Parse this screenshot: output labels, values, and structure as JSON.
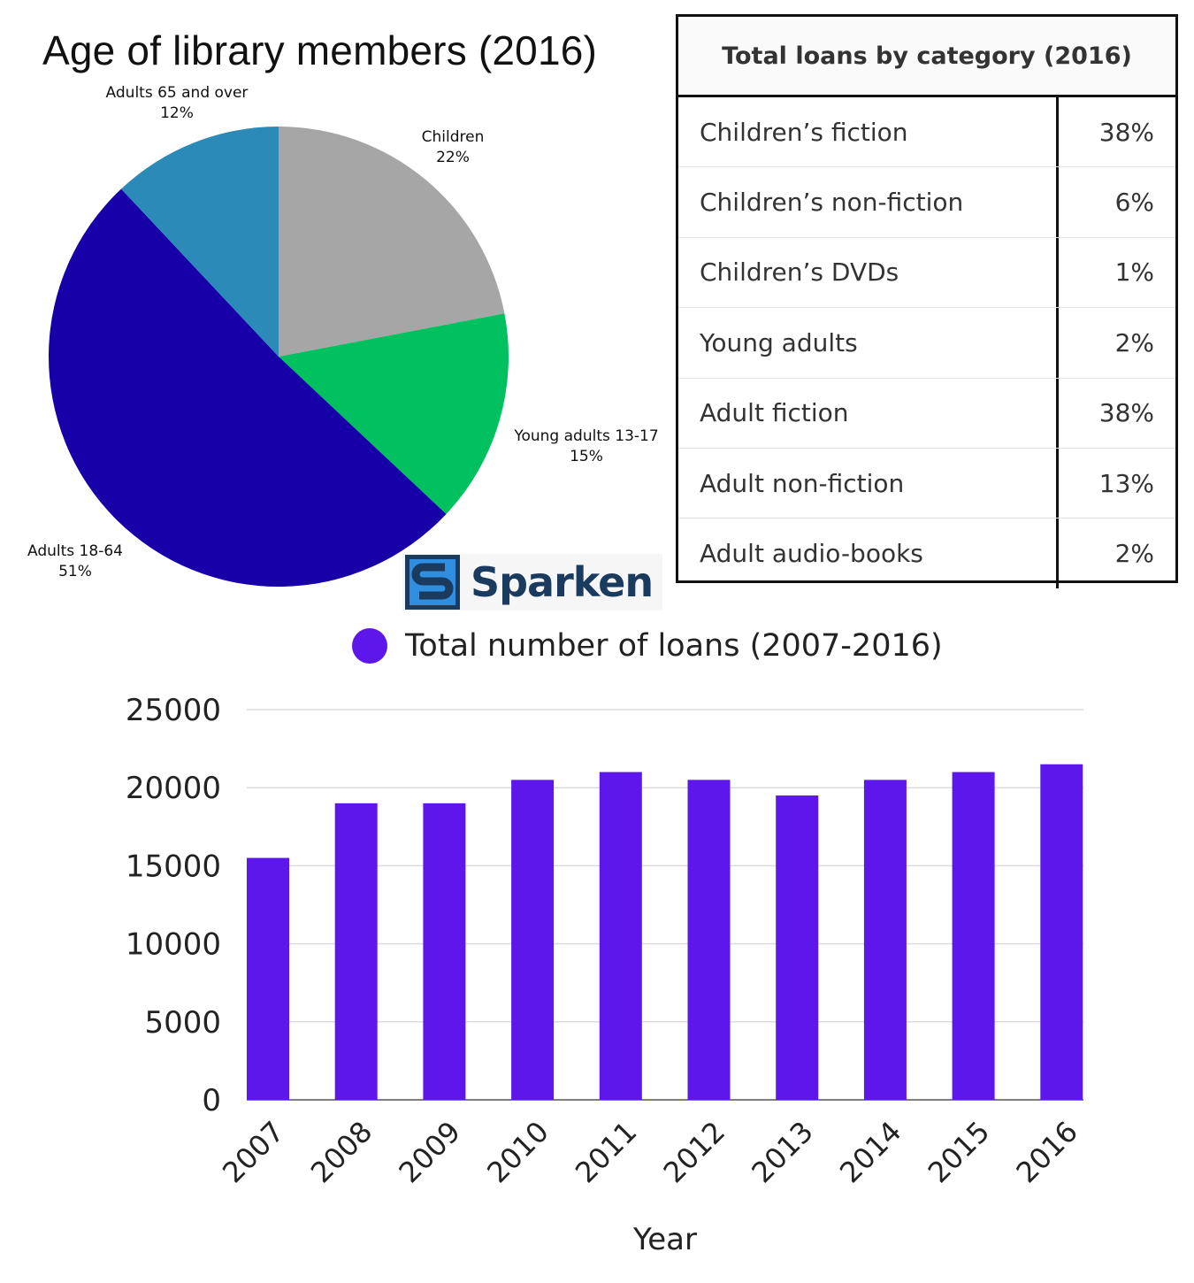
{
  "chart_data": [
    {
      "type": "pie",
      "title": "Age of library members (2016)",
      "slices": [
        {
          "label": "Children",
          "value": 22,
          "value_label": "22%",
          "color": "#a6a6a6"
        },
        {
          "label": "Young adults 13-17",
          "value": 15,
          "value_label": "15%",
          "color": "#00c060"
        },
        {
          "label": "Adults 18-64",
          "value": 51,
          "value_label": "51%",
          "color": "#1800a8"
        },
        {
          "label": "Adults 65 and over",
          "value": 12,
          "value_label": "12%",
          "color": "#2b8ab8"
        }
      ]
    },
    {
      "type": "table",
      "title": "Total loans by category (2016)",
      "rows": [
        {
          "category": "Children’s fiction",
          "value": "38%"
        },
        {
          "category": "Children’s non-fiction",
          "value": "6%"
        },
        {
          "category": "Children’s DVDs",
          "value": "1%"
        },
        {
          "category": "Young adults",
          "value": "2%"
        },
        {
          "category": "Adult fiction",
          "value": "38%"
        },
        {
          "category": "Adult non-fiction",
          "value": "13%"
        },
        {
          "category": "Adult audio-books",
          "value": "2%"
        }
      ]
    },
    {
      "type": "bar",
      "title": "Total number of loans (2007-2016)",
      "legend": "Total number of loans (2007-2016)",
      "legend_position": "top-center",
      "categories": [
        "2007",
        "2008",
        "2009",
        "2010",
        "2011",
        "2012",
        "2013",
        "2014",
        "2015",
        "2016"
      ],
      "values": [
        15500,
        19000,
        19000,
        20500,
        21000,
        20500,
        19500,
        20500,
        21000,
        21500
      ],
      "xlabel": "Year",
      "ylabel": "",
      "ylim": [
        0,
        25000
      ],
      "yticks": [
        "0",
        "5000",
        "10000",
        "15000",
        "20000",
        "25000"
      ],
      "grid": true,
      "color": "#5d17eb"
    }
  ],
  "logo": {
    "text": "Sparken",
    "color": "#1a3a5e",
    "accent": "#2f8ee0"
  }
}
